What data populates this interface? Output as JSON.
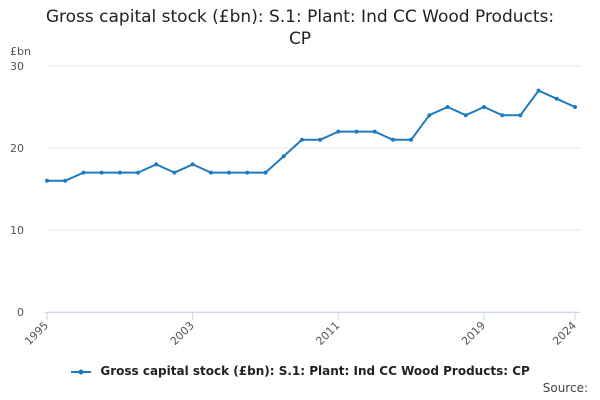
{
  "colors": {
    "series": "#1f7bbf",
    "grid": "#e6e6e6",
    "axis": "#ccd6eb"
  },
  "source_label": "Source:",
  "chart_data": {
    "type": "line",
    "title": "Gross capital stock (£bn): S.1: Plant: Ind CC Wood Products: CP",
    "ylabel": "£bn",
    "ylim": [
      0,
      30
    ],
    "yticks": [
      0,
      10,
      20,
      30
    ],
    "xticks": [
      1995,
      2003,
      2011,
      2019,
      2024
    ],
    "grid": true,
    "legend_position": "bottom",
    "series": [
      {
        "name": "Gross capital stock (£bn): S.1: Plant: Ind CC Wood Products: CP",
        "x": [
          1995,
          1996,
          1997,
          1998,
          1999,
          2000,
          2001,
          2002,
          2003,
          2004,
          2005,
          2006,
          2007,
          2008,
          2009,
          2010,
          2011,
          2012,
          2013,
          2014,
          2015,
          2016,
          2017,
          2018,
          2019,
          2020,
          2021,
          2022,
          2023,
          2024
        ],
        "values": [
          16,
          16,
          17,
          17,
          17,
          17,
          18,
          17,
          18,
          17,
          17,
          17,
          17,
          19,
          21,
          21,
          22,
          22,
          22,
          21,
          21,
          24,
          25,
          24,
          25,
          24,
          24,
          27,
          26,
          25
        ]
      }
    ]
  }
}
